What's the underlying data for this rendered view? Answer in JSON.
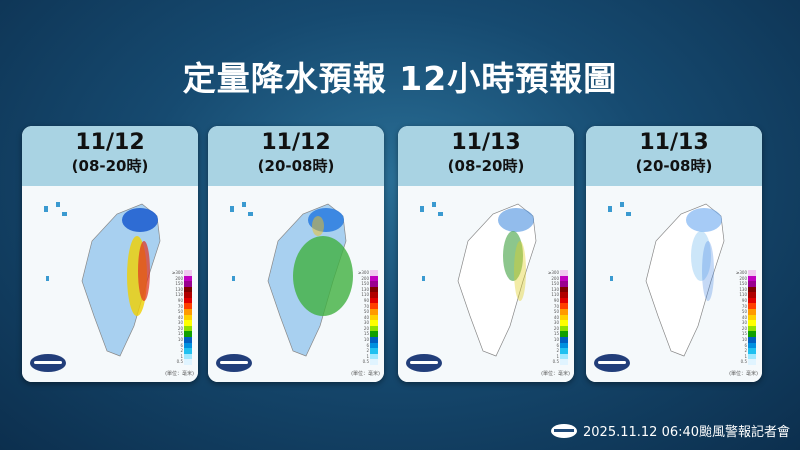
{
  "title": "定量降水預報  12小時預報圖",
  "panels": [
    {
      "date": "11/12",
      "period": "(08-20時)",
      "intensity": "heavy-east"
    },
    {
      "date": "11/12",
      "period": "(20-08時)",
      "intensity": "widespread"
    },
    {
      "date": "11/13",
      "period": "(08-20時)",
      "intensity": "north-east"
    },
    {
      "date": "11/13",
      "period": "(20-08時)",
      "intensity": "light-north"
    }
  ],
  "legend": {
    "labels": [
      "≥300",
      "200",
      "150",
      "130",
      "110",
      "90",
      "70",
      "50",
      "40",
      "30",
      "20",
      "15",
      "10",
      "6",
      "2",
      "1",
      "0.5"
    ],
    "colors": [
      "#f0c8f0",
      "#c000c0",
      "#9a0090",
      "#800000",
      "#b00000",
      "#e00000",
      "#ff4000",
      "#ff9a00",
      "#ffd000",
      "#ffff00",
      "#90e000",
      "#10a000",
      "#0060c0",
      "#0090e0",
      "#20c0f0",
      "#a0e8ff",
      "#e0f4ff"
    ],
    "unit": "(單位：毫米)"
  },
  "footer": {
    "text": "2025.11.12  06:40颱風警報記者會"
  }
}
